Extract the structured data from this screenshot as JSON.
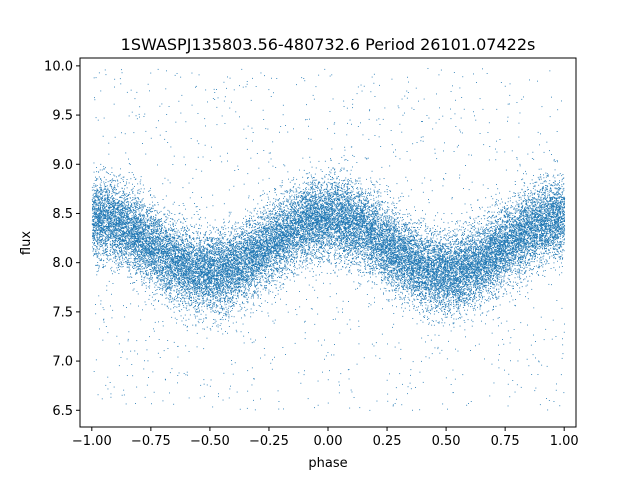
{
  "chart_data": {
    "type": "scatter",
    "title": "1SWASPJ135803.56-480732.6 Period 26101.07422s",
    "xlabel": "phase",
    "ylabel": "flux",
    "xlim": [
      -1.05,
      1.05
    ],
    "ylim": [
      6.33,
      10.08
    ],
    "x_ticks": [
      -1.0,
      -0.75,
      -0.5,
      -0.25,
      0.0,
      0.25,
      0.5,
      0.75,
      1.0
    ],
    "x_tick_labels": [
      "−1.00",
      "−0.75",
      "−0.50",
      "−0.25",
      "0.00",
      "0.25",
      "0.50",
      "0.75",
      "1.00"
    ],
    "y_ticks": [
      6.5,
      7.0,
      7.5,
      8.0,
      8.5,
      9.0,
      9.5,
      10.0
    ],
    "y_tick_labels": [
      "6.5",
      "7.0",
      "7.5",
      "8.0",
      "8.5",
      "9.0",
      "9.5",
      "10.0"
    ],
    "grid": false,
    "marker_color": "#1f77b4",
    "series": [
      {
        "model": "phase-folded light curve, points span phase -1.00 to 1.00 (period = 1 in phase)",
        "mean_flux": 8.18,
        "amplitude": 0.28,
        "maxima_phase": [
          -1.0,
          0.0,
          1.0
        ],
        "minima_phase": [
          -0.45,
          0.55
        ],
        "scatter_sigma": 0.2,
        "outlier_flux_range": [
          6.5,
          10.0
        ],
        "point_count": 30000
      }
    ]
  }
}
